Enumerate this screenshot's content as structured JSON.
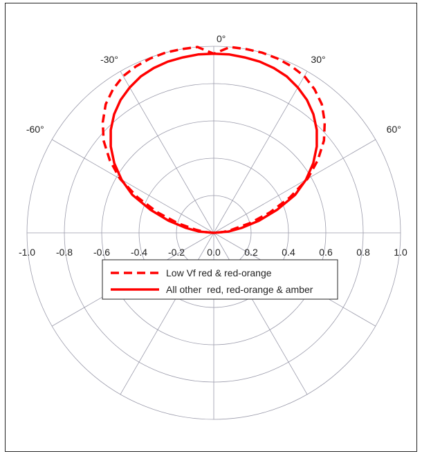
{
  "chart_data": {
    "type": "line",
    "subtype": "polar-radiation-pattern",
    "angle_ticks": [
      "-60°",
      "-30°",
      "0°",
      "30°",
      "60°"
    ],
    "radius_ticks": [
      "-1.0",
      "-0.8",
      "-0.6",
      "-0.4",
      "-0.2",
      "0.0",
      "0.2",
      "0.4",
      "0.6",
      "0.8",
      "1.0"
    ],
    "radius_range": [
      0,
      1.0
    ],
    "angle_unit": "degrees",
    "grid": true,
    "legend_position": "center-below",
    "series": [
      {
        "name": "Low Vf red & red-orange",
        "style": "dashed",
        "color": "#ff0000",
        "angles": [
          -90,
          -85,
          -80,
          -75,
          -70,
          -65,
          -60,
          -55,
          -50,
          -45,
          -40,
          -35,
          -30,
          -25,
          -20,
          -15,
          -10,
          -5,
          0,
          5,
          10,
          15,
          20,
          25,
          30,
          35,
          40,
          45,
          50,
          55,
          60,
          65,
          70,
          75,
          80,
          85,
          90
        ],
        "values": [
          0.0,
          0.05,
          0.1,
          0.2,
          0.32,
          0.45,
          0.58,
          0.68,
          0.77,
          0.84,
          0.9,
          0.94,
          0.97,
          0.985,
          0.995,
          1.0,
          1.0,
          1.0,
          0.96,
          1.0,
          1.0,
          1.0,
          0.995,
          0.985,
          0.97,
          0.94,
          0.9,
          0.84,
          0.77,
          0.68,
          0.58,
          0.45,
          0.32,
          0.2,
          0.1,
          0.05,
          0.0
        ]
      },
      {
        "name": "All other  red, red-orange & amber",
        "style": "solid",
        "color": "#ff0000",
        "angles": [
          -90,
          -85,
          -80,
          -75,
          -70,
          -65,
          -60,
          -55,
          -50,
          -45,
          -40,
          -35,
          -30,
          -25,
          -20,
          -15,
          -10,
          -5,
          0,
          5,
          10,
          15,
          20,
          25,
          30,
          35,
          40,
          45,
          50,
          55,
          60,
          65,
          70,
          75,
          80,
          85,
          90
        ],
        "values": [
          0.0,
          0.08,
          0.15,
          0.25,
          0.36,
          0.48,
          0.57,
          0.65,
          0.72,
          0.78,
          0.83,
          0.87,
          0.9,
          0.925,
          0.94,
          0.95,
          0.955,
          0.96,
          0.96,
          0.96,
          0.955,
          0.95,
          0.94,
          0.925,
          0.9,
          0.87,
          0.83,
          0.78,
          0.72,
          0.65,
          0.57,
          0.48,
          0.36,
          0.25,
          0.15,
          0.08,
          0.0
        ]
      }
    ]
  }
}
